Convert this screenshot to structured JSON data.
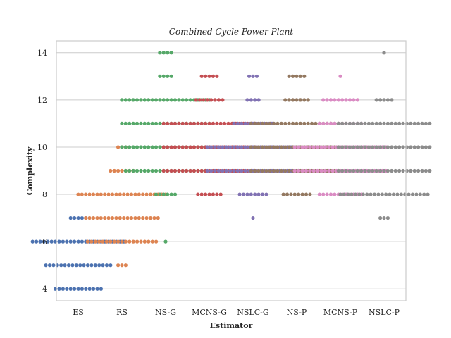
{
  "chart_data": {
    "type": "scatter",
    "subtype": "swarm",
    "title": "Combined Cycle Power Plant",
    "xlabel": "Estimator",
    "ylabel": "Complexity",
    "ylim": [
      3.5,
      14.5
    ],
    "yticks": [
      4,
      6,
      8,
      10,
      12,
      14
    ],
    "grid": "horizontal",
    "categories": [
      "ES",
      "RS",
      "NS-G",
      "MCNS-G",
      "NSLC-G",
      "NS-P",
      "MCNS-P",
      "NSLC-P"
    ],
    "colors": [
      "#4c72b0",
      "#dd8452",
      "#55a868",
      "#c44e52",
      "#8172b3",
      "#937860",
      "#da8bc3",
      "#8c8c8c"
    ],
    "series": [
      {
        "category": "ES",
        "counts": {
          "4": 13,
          "5": 18,
          "6": 25,
          "7": 5
        }
      },
      {
        "category": "RS",
        "counts": {
          "5": 3,
          "6": 19,
          "7": 20,
          "8": 24,
          "9": 7,
          "10": 3
        }
      },
      {
        "category": "NS-G",
        "counts": {
          "6": 1,
          "8": 6,
          "9": 22,
          "10": 24,
          "11": 24,
          "12": 24,
          "13": 4,
          "14": 4
        }
      },
      {
        "category": "MCNS-G",
        "counts": {
          "8": 7,
          "9": 25,
          "10": 25,
          "11": 25,
          "12": 8,
          "13": 5
        }
      },
      {
        "category": "NSLC-G",
        "counts": {
          "7": 1,
          "8": 8,
          "9": 25,
          "10": 25,
          "11": 11,
          "12": 4,
          "13": 3
        }
      },
      {
        "category": "NS-P",
        "counts": {
          "8": 8,
          "9": 25,
          "10": 25,
          "11": 25,
          "12": 7,
          "13": 5
        }
      },
      {
        "category": "MCNS-P",
        "counts": {
          "8": 12,
          "9": 25,
          "10": 25,
          "11": 12,
          "12": 10,
          "13": 1
        }
      },
      {
        "category": "NSLC-P",
        "counts": {
          "7": 3,
          "8": 24,
          "9": 25,
          "10": 25,
          "11": 25,
          "12": 5,
          "14": 1
        }
      }
    ]
  }
}
